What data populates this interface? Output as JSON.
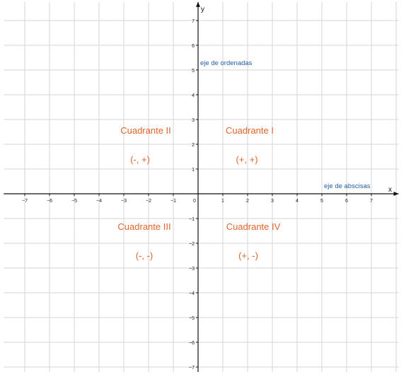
{
  "graph": {
    "x_axis": {
      "label": "x",
      "note": "eje de abscisas",
      "ticks": [
        -7,
        -6,
        -5,
        -4,
        -3,
        -2,
        -1,
        0,
        1,
        2,
        3,
        4,
        5,
        6,
        7
      ],
      "range": [
        -7.85,
        8.1
      ]
    },
    "y_axis": {
      "label": "y",
      "note": "eje de ordenadas",
      "ticks": [
        -7,
        -6,
        -5,
        -4,
        -3,
        -2,
        -1,
        1,
        2,
        3,
        4,
        5,
        6,
        7
      ],
      "range": [
        -7.2,
        7.75
      ]
    },
    "grid": true
  },
  "quadrants": [
    {
      "name": "Cuadrante I",
      "signs": "(+, +)"
    },
    {
      "name": "Cuadrante II",
      "signs": "(-, +)"
    },
    {
      "name": "Cuadrante III",
      "signs": "(-, -)"
    },
    {
      "name": "Cuadrante IV",
      "signs": "(+, -)"
    }
  ],
  "colors": {
    "grid": "#d6d6d6",
    "axis": "#111111",
    "quadrant_text": "#e0652a",
    "axis_note": "#1f5fa8"
  }
}
